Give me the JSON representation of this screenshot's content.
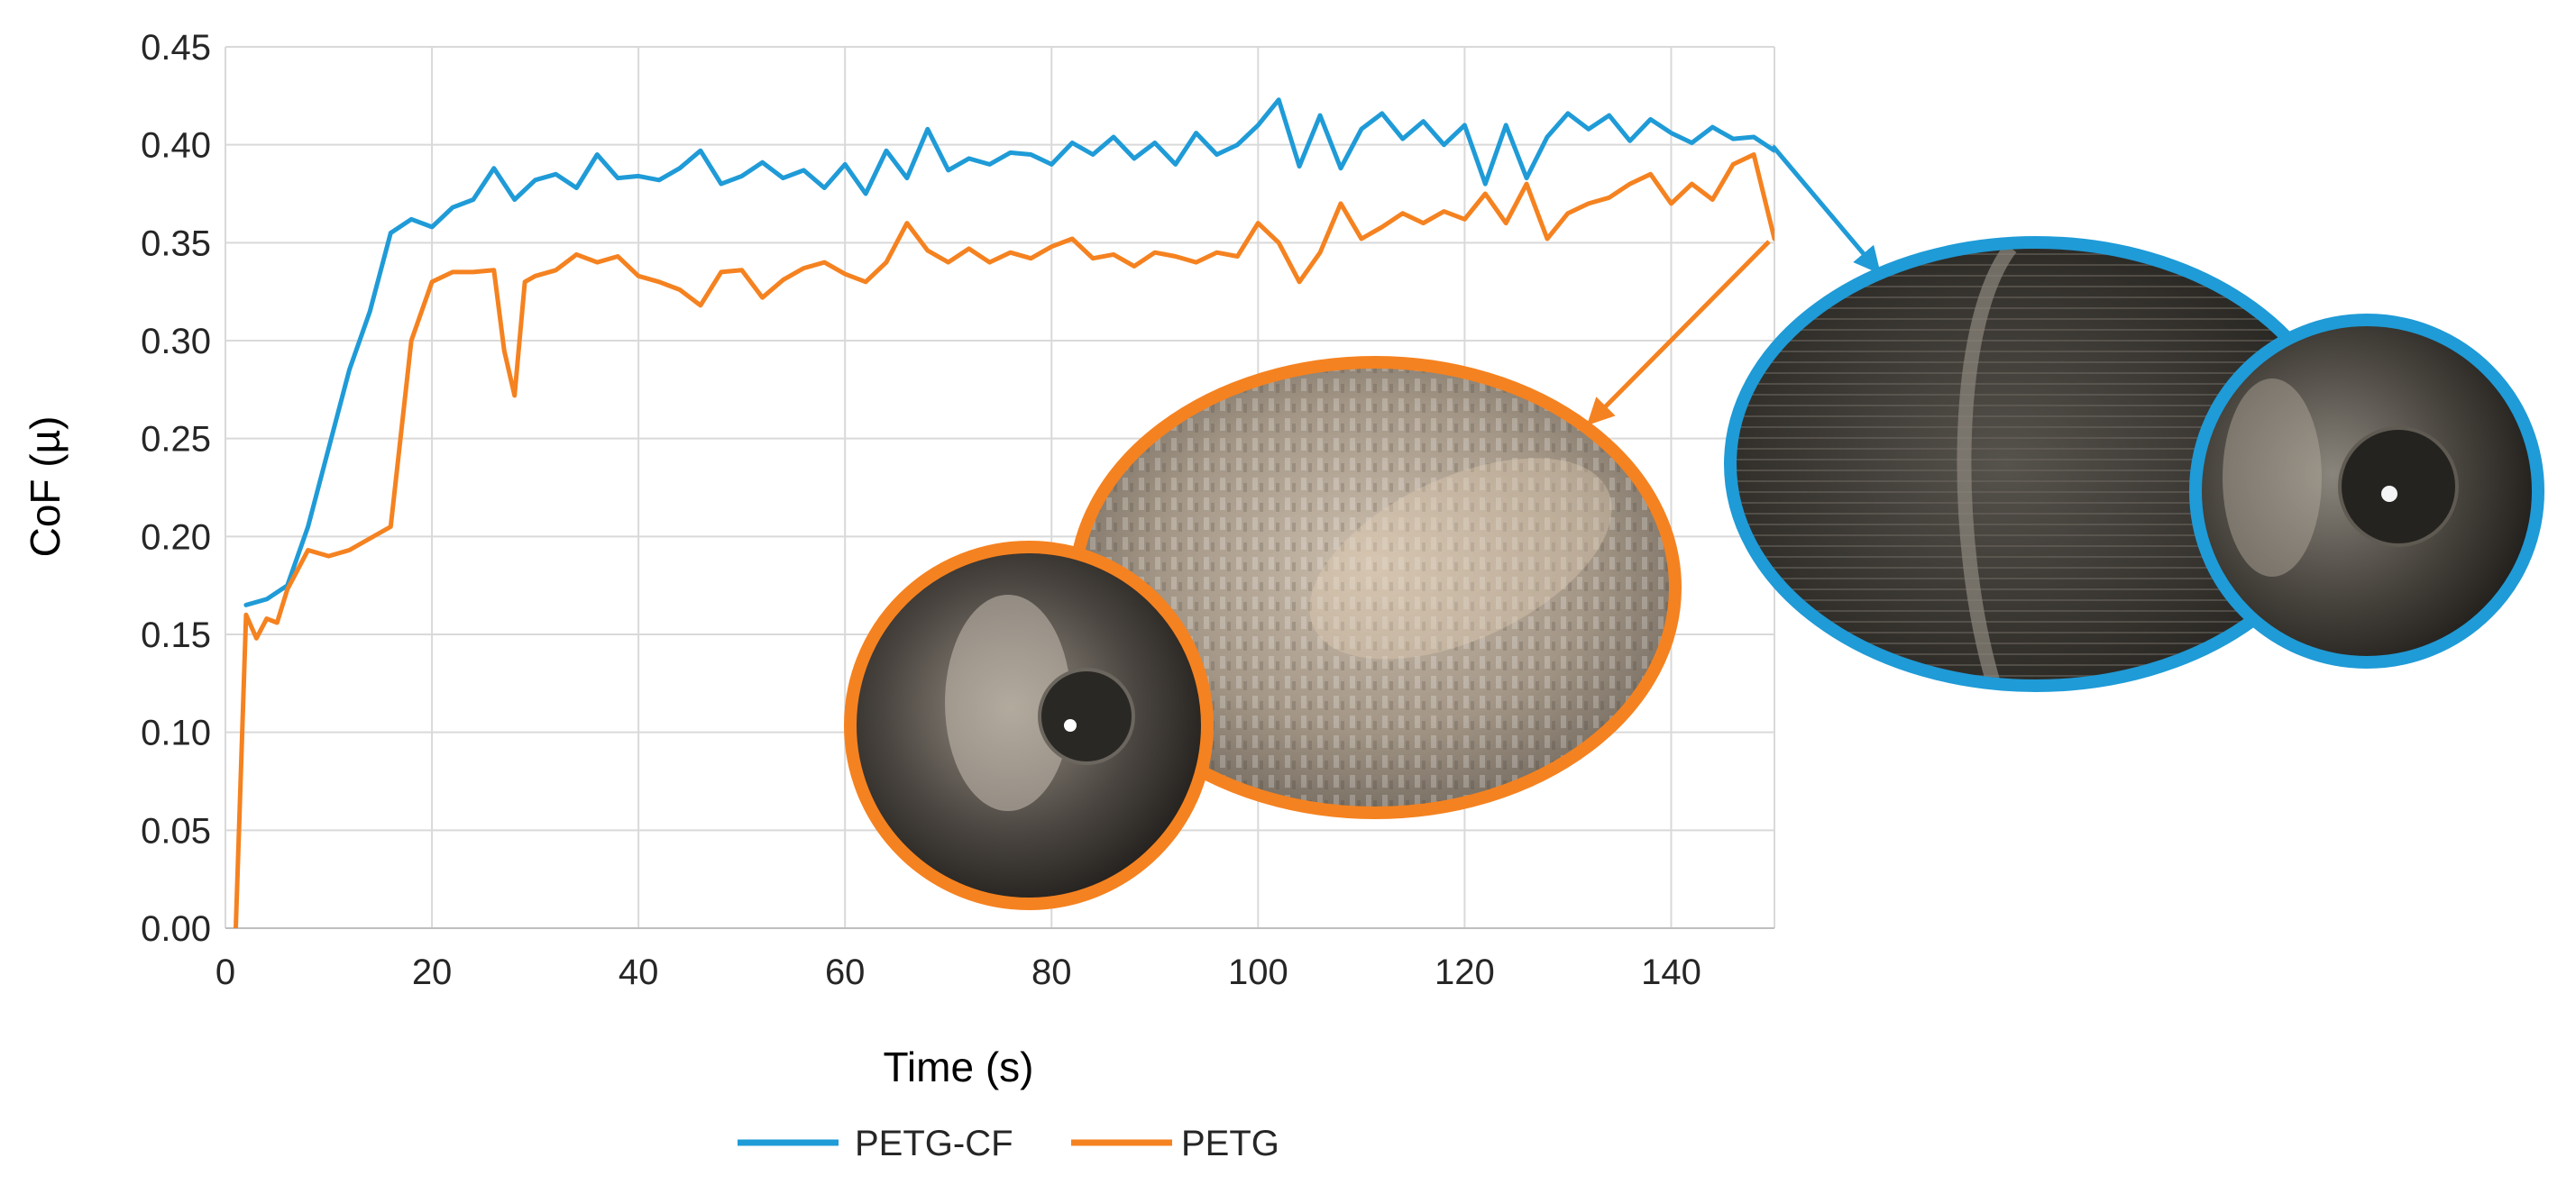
{
  "chart_data": {
    "type": "line",
    "title": "",
    "xlabel": "Time (s)",
    "ylabel": "CoF (µ)",
    "xlim": [
      0,
      150
    ],
    "ylim": [
      0,
      0.45
    ],
    "x_ticks": [
      "0",
      "20",
      "40",
      "60",
      "80",
      "100",
      "120",
      "140"
    ],
    "y_ticks": [
      "0.00",
      "0.05",
      "0.10",
      "0.15",
      "0.20",
      "0.25",
      "0.30",
      "0.35",
      "0.40",
      "0.45"
    ],
    "grid": true,
    "legend_position": "bottom-center",
    "series": [
      {
        "name": "PETG-CF",
        "color": "#1F9BD7",
        "x": [
          2,
          4,
          6,
          8,
          10,
          12,
          14,
          16,
          18,
          20,
          22,
          24,
          26,
          28,
          30,
          32,
          34,
          36,
          38,
          40,
          42,
          44,
          46,
          48,
          50,
          52,
          54,
          56,
          58,
          60,
          62,
          64,
          66,
          68,
          70,
          72,
          74,
          76,
          78,
          80,
          82,
          84,
          86,
          88,
          90,
          92,
          94,
          96,
          98,
          100,
          102,
          104,
          106,
          108,
          110,
          112,
          114,
          116,
          118,
          120,
          122,
          124,
          126,
          128,
          130,
          132,
          134,
          136,
          138,
          140,
          142,
          144,
          146,
          148,
          150
        ],
        "y": [
          0.165,
          0.168,
          0.175,
          0.205,
          0.245,
          0.285,
          0.315,
          0.355,
          0.362,
          0.358,
          0.368,
          0.372,
          0.388,
          0.372,
          0.382,
          0.385,
          0.378,
          0.395,
          0.383,
          0.384,
          0.382,
          0.388,
          0.397,
          0.38,
          0.384,
          0.391,
          0.383,
          0.387,
          0.378,
          0.39,
          0.375,
          0.397,
          0.383,
          0.408,
          0.387,
          0.393,
          0.39,
          0.396,
          0.395,
          0.39,
          0.401,
          0.395,
          0.404,
          0.393,
          0.401,
          0.39,
          0.406,
          0.395,
          0.4,
          0.41,
          0.423,
          0.389,
          0.415,
          0.388,
          0.408,
          0.416,
          0.403,
          0.412,
          0.4,
          0.41,
          0.38,
          0.41,
          0.383,
          0.404,
          0.416,
          0.408,
          0.415,
          0.402,
          0.413,
          0.406,
          0.401,
          0.409,
          0.403,
          0.404,
          0.397
        ]
      },
      {
        "name": "PETG",
        "color": "#F58220",
        "x": [
          1,
          2,
          3,
          4,
          5,
          6,
          8,
          10,
          12,
          14,
          16,
          18,
          20,
          22,
          24,
          26,
          27,
          28,
          29,
          30,
          32,
          34,
          36,
          38,
          40,
          42,
          44,
          46,
          48,
          50,
          52,
          54,
          56,
          58,
          60,
          62,
          64,
          66,
          68,
          70,
          72,
          74,
          76,
          78,
          80,
          82,
          84,
          86,
          88,
          90,
          92,
          94,
          96,
          98,
          100,
          102,
          104,
          106,
          108,
          110,
          112,
          114,
          116,
          118,
          120,
          122,
          124,
          126,
          128,
          130,
          132,
          134,
          136,
          138,
          140,
          142,
          144,
          146,
          148,
          150
        ],
        "y": [
          0.0,
          0.16,
          0.148,
          0.158,
          0.156,
          0.173,
          0.193,
          0.19,
          0.193,
          0.199,
          0.205,
          0.3,
          0.33,
          0.335,
          0.335,
          0.336,
          0.295,
          0.272,
          0.33,
          0.333,
          0.336,
          0.344,
          0.34,
          0.343,
          0.333,
          0.33,
          0.326,
          0.318,
          0.335,
          0.336,
          0.322,
          0.331,
          0.337,
          0.34,
          0.334,
          0.33,
          0.34,
          0.36,
          0.346,
          0.34,
          0.347,
          0.34,
          0.345,
          0.342,
          0.348,
          0.352,
          0.342,
          0.344,
          0.338,
          0.345,
          0.343,
          0.34,
          0.345,
          0.343,
          0.36,
          0.35,
          0.33,
          0.345,
          0.37,
          0.352,
          0.358,
          0.365,
          0.36,
          0.366,
          0.362,
          0.375,
          0.36,
          0.38,
          0.352,
          0.365,
          0.37,
          0.373,
          0.38,
          0.385,
          0.37,
          0.38,
          0.372,
          0.39,
          0.395,
          0.352
        ]
      }
    ]
  },
  "insets": [
    {
      "id": "petg-ball",
      "series": "PETG",
      "border": "#F58220"
    },
    {
      "id": "petg-track",
      "series": "PETG",
      "border": "#F58220"
    },
    {
      "id": "petgcf-track",
      "series": "PETG-CF",
      "border": "#1F9BD7"
    },
    {
      "id": "petgcf-ball",
      "series": "PETG-CF",
      "border": "#1F9BD7"
    }
  ]
}
